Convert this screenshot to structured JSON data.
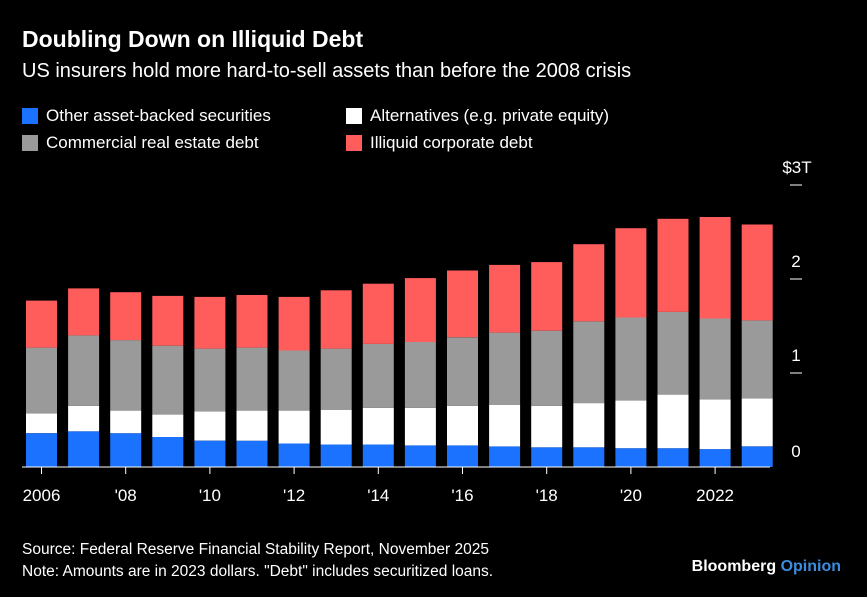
{
  "header": {
    "title": "Doubling Down on Illiquid Debt",
    "subtitle": "US insurers hold more hard-to-sell assets than before the 2008 crisis"
  },
  "footer": {
    "source": "Source: Federal Reserve Financial Stability Report, November 2025",
    "note": "Note: Amounts are in 2023 dollars. \"Debt\" includes securitized loans.",
    "brand_main": "Bloomberg",
    "brand_accent": "Opinion"
  },
  "chart_data": {
    "type": "bar",
    "stacked": true,
    "title": "Doubling Down on Illiquid Debt",
    "subtitle": "US insurers hold more hard-to-sell assets than before the 2008 crisis",
    "years": [
      2006,
      2007,
      2008,
      2009,
      2010,
      2011,
      2012,
      2013,
      2014,
      2015,
      2016,
      2017,
      2018,
      2019,
      2020,
      2021,
      2022,
      2023
    ],
    "x_tick_labels": [
      {
        "year": 2006,
        "label": "2006"
      },
      {
        "year": 2008,
        "label": "'08"
      },
      {
        "year": 2010,
        "label": "'10"
      },
      {
        "year": 2012,
        "label": "'12"
      },
      {
        "year": 2014,
        "label": "'14"
      },
      {
        "year": 2016,
        "label": "'16"
      },
      {
        "year": 2018,
        "label": "'18"
      },
      {
        "year": 2020,
        "label": "'20"
      },
      {
        "year": 2022,
        "label": "2022"
      }
    ],
    "y_ticks": [
      {
        "value": 0,
        "label": "0"
      },
      {
        "value": 1,
        "label": "1"
      },
      {
        "value": 2,
        "label": "2"
      },
      {
        "value": 3,
        "label": "$3T"
      }
    ],
    "ylim": [
      0,
      3
    ],
    "ylabel": "",
    "xlabel": "",
    "legend_position": "top-left",
    "series": [
      {
        "name": "Other asset-backed securities",
        "color": "#1a72ff",
        "values": [
          0.36,
          0.38,
          0.36,
          0.32,
          0.28,
          0.28,
          0.25,
          0.24,
          0.24,
          0.23,
          0.23,
          0.22,
          0.21,
          0.21,
          0.2,
          0.2,
          0.19,
          0.22
        ]
      },
      {
        "name": "Alternatives (e.g. private equity)",
        "color": "#ffffff",
        "values": [
          0.21,
          0.27,
          0.24,
          0.24,
          0.31,
          0.32,
          0.35,
          0.37,
          0.39,
          0.4,
          0.42,
          0.44,
          0.44,
          0.47,
          0.51,
          0.57,
          0.53,
          0.51
        ]
      },
      {
        "name": "Commercial real estate debt",
        "color": "#9a9a9a",
        "values": [
          0.7,
          0.75,
          0.75,
          0.73,
          0.67,
          0.67,
          0.64,
          0.65,
          0.68,
          0.7,
          0.73,
          0.77,
          0.8,
          0.87,
          0.88,
          0.88,
          0.86,
          0.83
        ]
      },
      {
        "name": "Illiquid corporate debt",
        "color": "#ff5c5c",
        "values": [
          0.5,
          0.5,
          0.51,
          0.53,
          0.55,
          0.56,
          0.57,
          0.62,
          0.64,
          0.68,
          0.71,
          0.72,
          0.73,
          0.82,
          0.95,
          0.99,
          1.08,
          1.02
        ]
      }
    ]
  }
}
